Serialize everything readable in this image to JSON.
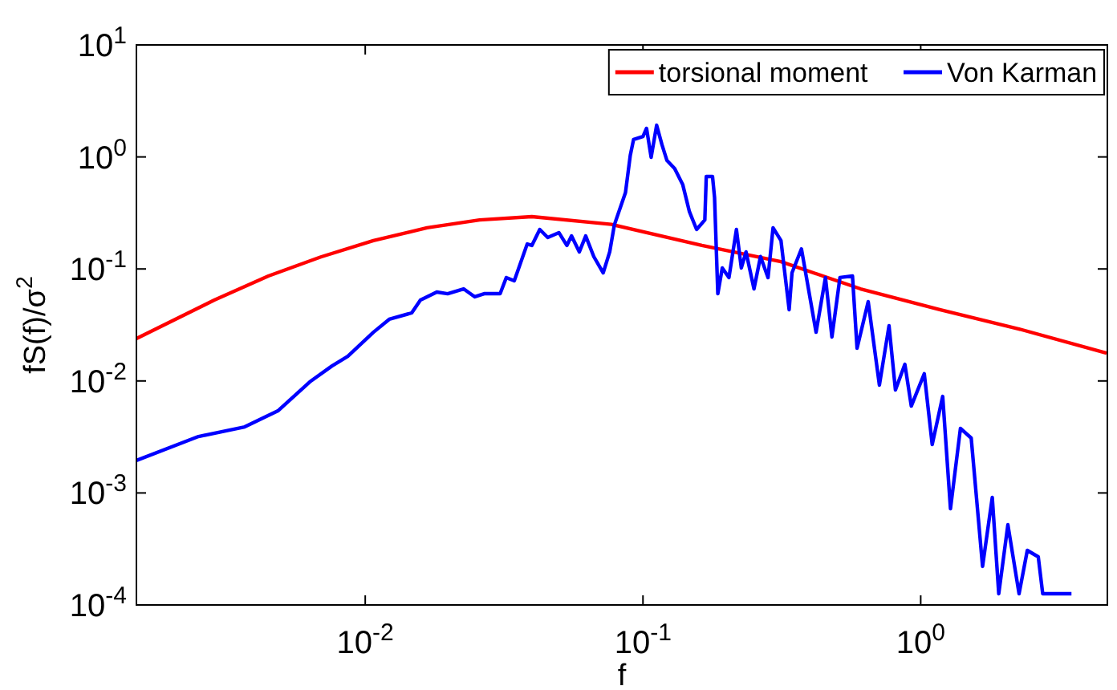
{
  "chart_data": {
    "type": "line",
    "xlabel": "f",
    "ylabel": "fS(f)/σ$^{2}$",
    "log": "xy",
    "grid": false,
    "legend": "top right",
    "line_style": "solid",
    "marker": "none",
    "xlim": [
      0.0015,
      4.7
    ],
    "ylim": [
      0.0001,
      10
    ],
    "xticks": [
      {
        "value": 0.01,
        "label": "10$^{-2}$"
      },
      {
        "value": 0.1,
        "label": "10$^{-1}$"
      },
      {
        "value": 1,
        "label": "10$^{0}$"
      }
    ],
    "yticks": [
      {
        "value": 0.0001,
        "label": "10$^{-4}$"
      },
      {
        "value": 0.001,
        "label": "10$^{-3}$"
      },
      {
        "value": 0.01,
        "label": "10$^{-2}$"
      },
      {
        "value": 0.1,
        "label": "10$^{-1}$"
      },
      {
        "value": 1,
        "label": "10$^{0}$"
      },
      {
        "value": 10,
        "label": "10$^{1}$"
      }
    ],
    "series": [
      {
        "name": "torsional moment",
        "color": "#ff0000",
        "x": [
          0.0015,
          0.00286,
          0.00448,
          0.00692,
          0.0107,
          0.0167,
          0.0258,
          0.0398,
          0.0769,
          0.163,
          0.314,
          0.607,
          1.17,
          2.26,
          4.67
        ],
        "values": [
          0.0239,
          0.0527,
          0.0865,
          0.128,
          0.179,
          0.233,
          0.274,
          0.293,
          0.25,
          0.162,
          0.116,
          0.0664,
          0.0433,
          0.0291,
          0.0177
        ]
      },
      {
        "name": "Von Karman",
        "color": "#0000ff",
        "x": [
          0.0015,
          0.00251,
          0.00368,
          0.00485,
          0.00631,
          0.00759,
          0.00865,
          0.0107,
          0.0122,
          0.0147,
          0.0158,
          0.0181,
          0.0198,
          0.0226,
          0.0248,
          0.0268,
          0.0306,
          0.0322,
          0.0344,
          0.0383,
          0.0398,
          0.0425,
          0.0454,
          0.0498,
          0.0532,
          0.0553,
          0.059,
          0.0622,
          0.0665,
          0.0719,
          0.0759,
          0.0789,
          0.0865,
          0.09,
          0.0925,
          0.1,
          0.103,
          0.107,
          0.112,
          0.117,
          0.122,
          0.13,
          0.139,
          0.147,
          0.156,
          0.167,
          0.169,
          0.178,
          0.181,
          0.186,
          0.193,
          0.204,
          0.217,
          0.226,
          0.235,
          0.251,
          0.265,
          0.282,
          0.294,
          0.314,
          0.336,
          0.344,
          0.372,
          0.42,
          0.454,
          0.479,
          0.512,
          0.568,
          0.59,
          0.647,
          0.71,
          0.769,
          0.811,
          0.877,
          0.925,
          1.03,
          1.1,
          1.2,
          1.28,
          1.39,
          1.52,
          1.67,
          1.81,
          1.91,
          2.06,
          2.26,
          2.42,
          2.65,
          2.75,
          2.94,
          3.49
        ],
        "values": [
          0.00195,
          0.00319,
          0.00389,
          0.00541,
          0.0098,
          0.0136,
          0.0166,
          0.0272,
          0.0355,
          0.0405,
          0.0527,
          0.0622,
          0.0601,
          0.0664,
          0.0564,
          0.0601,
          0.0601,
          0.0838,
          0.0784,
          0.167,
          0.162,
          0.225,
          0.191,
          0.211,
          0.162,
          0.197,
          0.142,
          0.197,
          0.129,
          0.0923,
          0.142,
          0.248,
          0.481,
          1.03,
          1.43,
          1.52,
          1.8,
          0.993,
          1.92,
          1.29,
          0.929,
          0.789,
          0.568,
          0.324,
          0.225,
          0.274,
          0.668,
          0.668,
          0.436,
          0.0601,
          0.102,
          0.0838,
          0.225,
          0.102,
          0.142,
          0.0664,
          0.129,
          0.0838,
          0.233,
          0.179,
          0.0433,
          0.0923,
          0.151,
          0.0272,
          0.0838,
          0.0247,
          0.0838,
          0.0865,
          0.0196,
          0.0511,
          0.00918,
          0.0311,
          0.00832,
          0.0141,
          0.00597,
          0.0116,
          0.00271,
          0.00728,
          0.000723,
          0.00377,
          0.00309,
          0.000221,
          0.000912,
          0.000126,
          0.00052,
          0.000126,
          0.000307,
          0.000269,
          0.000126,
          0.000126,
          0.000126
        ]
      }
    ]
  }
}
